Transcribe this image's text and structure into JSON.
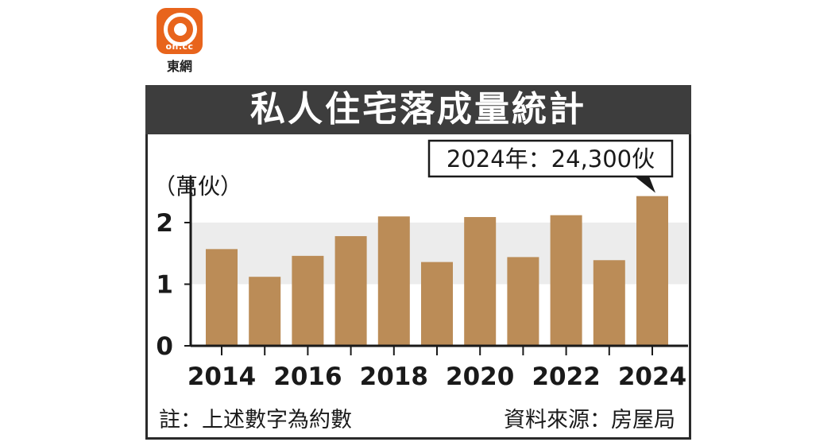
{
  "logo": {
    "icon": "on-cc-logo-icon",
    "word": "on.cc",
    "name": "東網",
    "color": "#e8641c"
  },
  "title": "私人住宅落成量統計",
  "unit_label": "（萬伙）",
  "callout": "2024年：24,300伙",
  "footnote": "註：上述數字為約數",
  "source": "資料來源：房屋局",
  "colors": {
    "bar": "#bb8c57",
    "band": "#ececec",
    "title_bg": "#3d3d3d"
  },
  "chart_data": {
    "type": "bar",
    "categories": [
      "2014",
      "2015",
      "2016",
      "2017",
      "2018",
      "2019",
      "2020",
      "2021",
      "2022",
      "2023",
      "2024"
    ],
    "x_tick_labels": [
      "2014",
      "",
      "2016",
      "",
      "2018",
      "",
      "2020",
      "",
      "2022",
      "",
      "2024"
    ],
    "values": [
      1.57,
      1.12,
      1.46,
      1.78,
      2.1,
      1.36,
      2.09,
      1.44,
      2.12,
      1.39,
      2.43
    ],
    "y_ticks": [
      0,
      1,
      2
    ],
    "ylim": [
      0,
      2.6
    ],
    "title": "私人住宅落成量統計",
    "ylabel": "（萬伙）",
    "xlabel": "",
    "highlight_band": [
      1,
      2
    ],
    "annotation": {
      "category": "2024",
      "text": "2024年：24,300伙"
    }
  }
}
